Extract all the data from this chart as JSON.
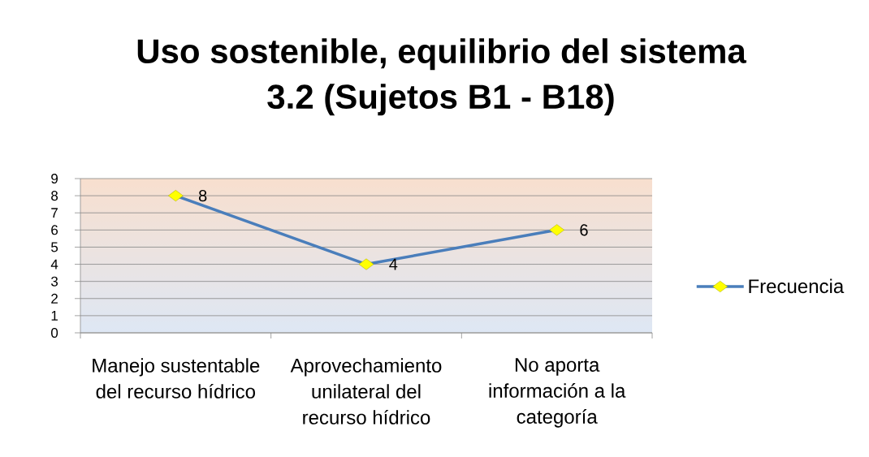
{
  "chart_data": {
    "type": "line",
    "title": "Uso sostenible, equilibrio del sistema 3.2 (Sujetos B1 - B18)",
    "categories": [
      "Manejo sustentable del recurso hídrico",
      "Aprovechamiento unilateral del recurso hídrico",
      "No aporta información a la categoría"
    ],
    "series": [
      {
        "name": "Frecuencia",
        "color": "#4a7ebb",
        "colors": [
          "#ffff00",
          "#ffff00",
          "#ffff00"
        ],
        "values": [
          8,
          4,
          6
        ]
      }
    ],
    "ylim": [
      0,
      9
    ],
    "yticks": [
      0,
      1,
      2,
      3,
      4,
      5,
      6,
      7,
      8,
      9
    ],
    "grid": "y",
    "legend": "right",
    "marker": "diamond",
    "line_style": "solid",
    "data_labels": true
  }
}
